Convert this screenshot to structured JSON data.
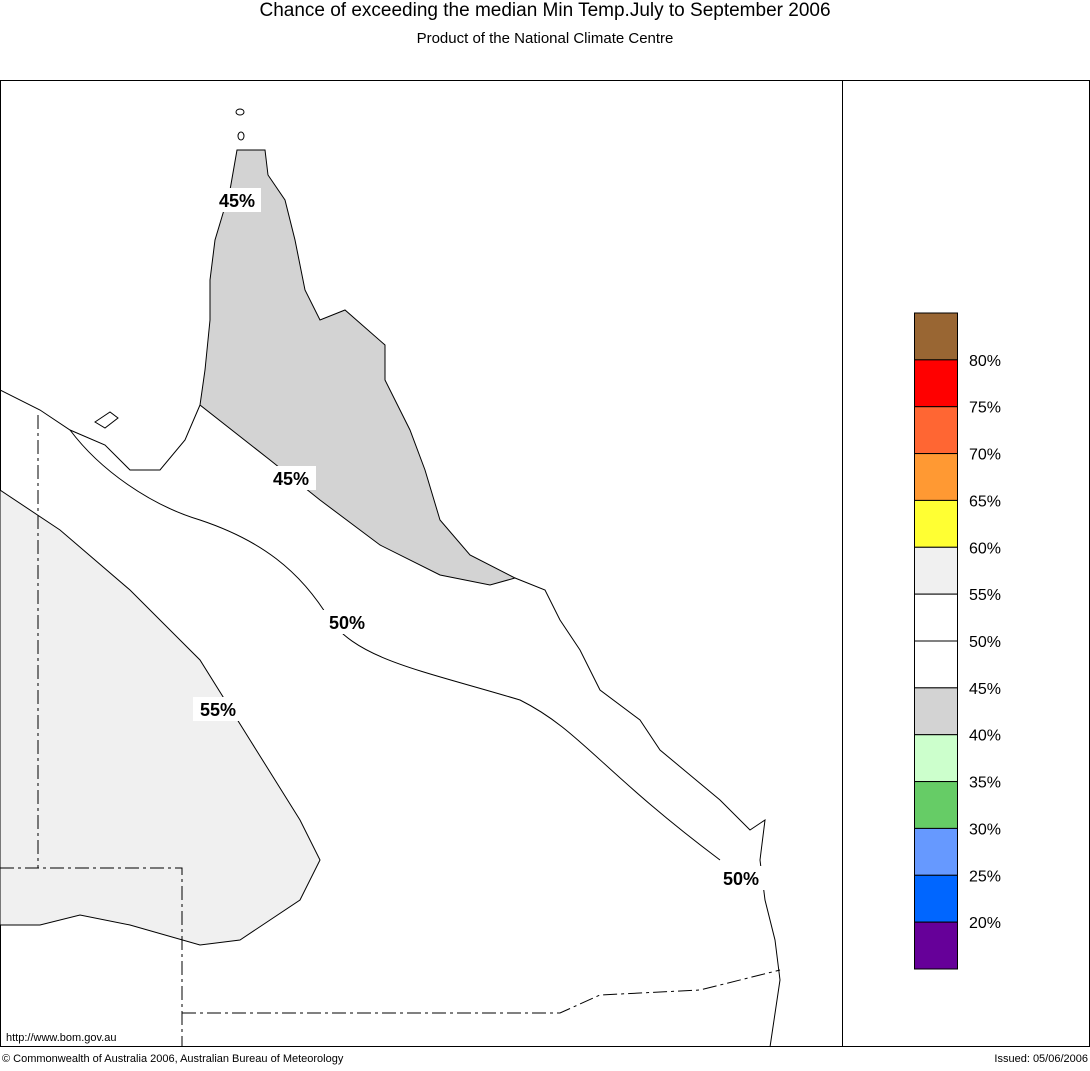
{
  "header": {
    "title": "Chance of exceeding the median Min Temp.July to September 2006",
    "subtitle": "Product of the National Climate Centre"
  },
  "map": {
    "contour_labels": [
      "45%",
      "45%",
      "50%",
      "55%",
      "50%"
    ],
    "url": "http://www.bom.gov.au"
  },
  "legend": {
    "colors": [
      "#996633",
      "#ff0000",
      "#ff6633",
      "#ff9933",
      "#ffff33",
      "#f0f0f0",
      "#ffffff",
      "#ffffff",
      "#d3d3d3",
      "#ccffcc",
      "#66cc66",
      "#6699ff",
      "#0066ff",
      "#660099"
    ],
    "labels": [
      "80%",
      "75%",
      "70%",
      "65%",
      "60%",
      "55%",
      "50%",
      "45%",
      "40%",
      "35%",
      "30%",
      "25%",
      "20%"
    ]
  },
  "footer": {
    "copyright": "© Commonwealth of Australia 2006, Australian Bureau of Meteorology",
    "issued": "Issued: 05/06/2006"
  }
}
